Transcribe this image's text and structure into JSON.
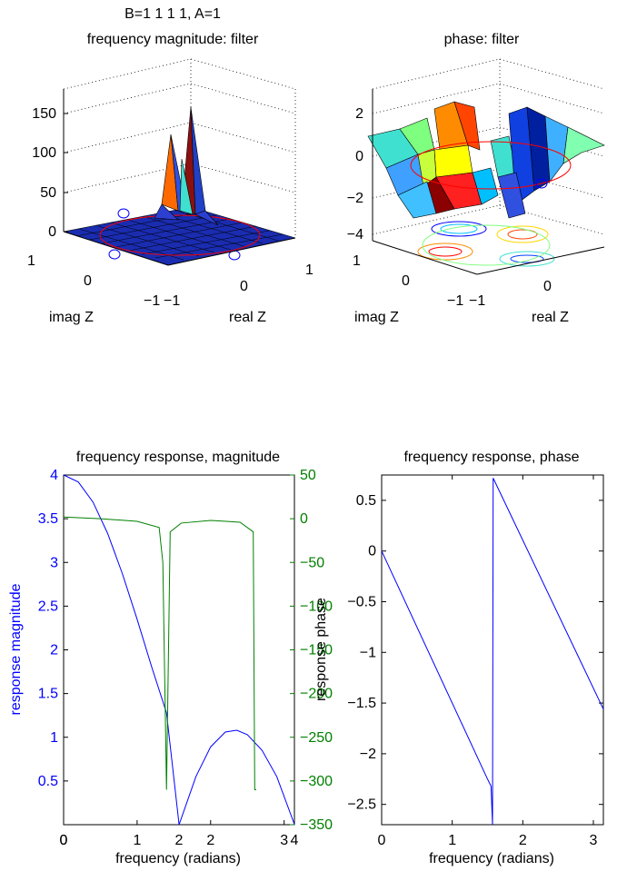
{
  "figure": {
    "panel1": {
      "title_line1": "B=1  1  1  1, A=1",
      "title_line2": "frequency magnitude: filter",
      "xlabel": "real Z",
      "ylabel": "imag Z",
      "z_ticks": [
        "0",
        "50",
        "100",
        "150"
      ],
      "x_ticks": [
        "−1",
        "0",
        "1"
      ],
      "y_ticks": [
        "1",
        "0",
        "−1"
      ]
    },
    "panel2": {
      "title": "phase: filter",
      "xlabel": "real Z",
      "ylabel": "imag Z",
      "z_ticks": [
        "−4",
        "−2",
        "0",
        "2"
      ],
      "x_ticks": [
        "−1",
        "0"
      ],
      "y_ticks": [
        "1",
        "0",
        "−1"
      ]
    }
  },
  "chart_data": [
    {
      "type": "surface",
      "title": "B=1  1  1  1, A=1 frequency magnitude: filter",
      "xlabel": "real Z",
      "ylabel": "imag Z",
      "zlim": [
        0,
        160
      ],
      "description_peaks": [
        {
          "x": -0.1,
          "y": 0.0,
          "z": 115
        },
        {
          "x": 0.1,
          "y": 0.0,
          "z": 155
        }
      ]
    },
    {
      "type": "surface",
      "title": "phase: filter",
      "xlabel": "real Z",
      "ylabel": "imag Z",
      "zlim": [
        -4,
        3
      ]
    },
    {
      "type": "line",
      "title": "frequency response, magnitude",
      "xlabel": "frequency (radians)",
      "ylabel": "response magnitude",
      "ylabel_right": "response phase",
      "xlim": [
        0,
        3.14
      ],
      "ylim": [
        0,
        4
      ],
      "ylim_right": [
        -350,
        50
      ],
      "x_ticks": [
        "0",
        "1",
        "2",
        "3"
      ],
      "x_ticks_extra": [
        "0",
        "2",
        "4"
      ],
      "y_ticks": [
        "0.5",
        "1",
        "1.5",
        "2",
        "2.5",
        "3",
        "3.5",
        "4"
      ],
      "y_ticks_right": [
        "−350",
        "−300",
        "−250",
        "−200",
        "−150",
        "−100",
        "−50",
        "0",
        "50"
      ],
      "series": [
        {
          "name": "magnitude",
          "color": "#0000ff",
          "x": [
            0,
            0.2,
            0.4,
            0.6,
            0.8,
            1.0,
            1.2,
            1.4,
            1.571,
            1.8,
            2.0,
            2.2,
            2.356,
            2.5,
            2.7,
            2.9,
            3.1416
          ],
          "y": [
            4.0,
            3.92,
            3.69,
            3.33,
            2.87,
            2.35,
            1.8,
            1.28,
            0.0,
            0.55,
            0.89,
            1.06,
            1.08,
            1.03,
            0.85,
            0.55,
            0.0
          ]
        },
        {
          "name": "phase",
          "color": "#008000",
          "x": [
            0,
            0.5,
            1.0,
            1.3,
            1.35,
            1.4,
            1.45,
            1.6,
            2.0,
            2.4,
            2.58,
            2.6,
            2.62
          ],
          "y": [
            2,
            0,
            -3,
            -10,
            -50,
            -310,
            -15,
            -5,
            -2,
            -4,
            -15,
            -310,
            -310
          ]
        }
      ]
    },
    {
      "type": "line",
      "title": "frequency response, phase",
      "xlabel": "frequency (radians)",
      "xlim": [
        0,
        3.1416
      ],
      "ylim": [
        -2.7,
        0.75
      ],
      "x_ticks": [
        "0",
        "1",
        "2",
        "3"
      ],
      "y_ticks": [
        "−2.5",
        "−2",
        "−1.5",
        "−1",
        "−0.5",
        "0",
        "0.5"
      ],
      "series": [
        {
          "name": "phase",
          "color": "#0000ff",
          "x": [
            0,
            1.5,
            1.55,
            1.571,
            1.58,
            3.1416
          ],
          "y": [
            0,
            -2.25,
            -2.32,
            -2.7,
            0.72,
            -1.56
          ]
        }
      ]
    }
  ],
  "colors": {
    "blue": "#0000ff",
    "green": "#008000",
    "axis": "#000000"
  }
}
